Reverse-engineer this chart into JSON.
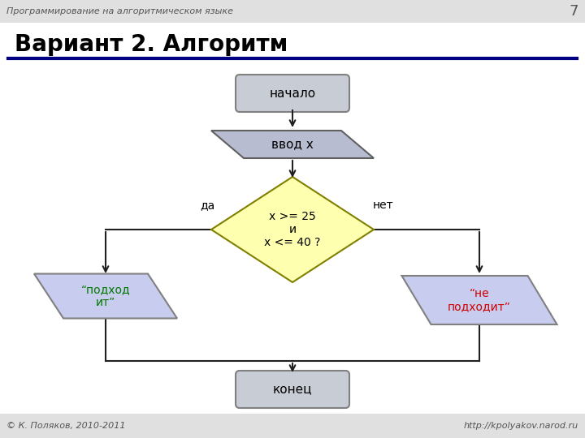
{
  "title": "Вариант 2. Алгоритм",
  "subtitle": "Программирование на алгоритмическом языке",
  "page_num": "7",
  "footer_left": "© К. Поляков, 2010-2011",
  "footer_right": "http://kpolyakov.narod.ru",
  "bg_color": "#ffffff",
  "header_color": "#e0e0e0",
  "footer_color": "#e0e0e0",
  "colors": {
    "rounded_rect_fill": "#c8ccd4",
    "rounded_rect_edge": "#808080",
    "parallelogram_fill": "#b8bcd0",
    "parallelogram_edge": "#606060",
    "diamond_fill": "#ffffb0",
    "diamond_edge": "#808000",
    "yes_fill": "#c8ccee",
    "no_fill": "#c8ccee",
    "arrow_color": "#202020",
    "green_text": "#007700",
    "red_text": "#cc0000",
    "title_color": "#000000",
    "title_line_color": "#000080"
  },
  "labels": {
    "da": "да",
    "net": "нет"
  },
  "condition_text": "x >= 25\nи\nx <= 40 ?",
  "start_text": "начало",
  "input_text": "ввод x",
  "yes_text": "“подход\nит”",
  "no_text": "“не\nподходит”",
  "end_text": "конец"
}
